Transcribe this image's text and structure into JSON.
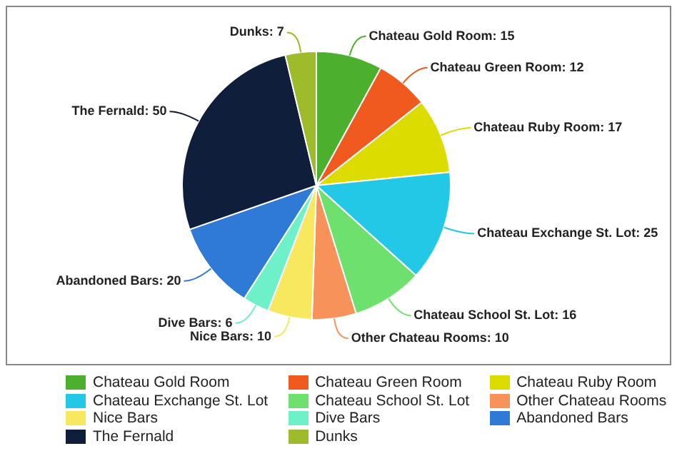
{
  "chart_data": {
    "type": "pie",
    "categories": [
      "Chateau Gold Room",
      "Chateau Green Room",
      "Chateau Ruby Room",
      "Chateau Exchange St. Lot",
      "Chateau School St. Lot",
      "Other Chateau Rooms",
      "Nice Bars",
      "Dive Bars",
      "Abandoned Bars",
      "The Fernald",
      "Dunks"
    ],
    "values": [
      15,
      12,
      17,
      25,
      16,
      10,
      10,
      6,
      20,
      50,
      7
    ],
    "value_labels": [
      "Chateau Gold Room: 15",
      "Chateau Green Room: 12",
      "Chateau Ruby Room: 17",
      "Chateau Exchange St. Lot: 25",
      "Chateau School St. Lot: 16",
      "Other Chateau Rooms: 10",
      "Nice Bars: 10",
      "Dive Bars: 6",
      "Abandoned Bars: 20",
      "The Fernald: 50",
      "Dunks: 7"
    ],
    "colors": [
      "#4caf2e",
      "#f05a1e",
      "#dcdc00",
      "#22c8e5",
      "#6ee06e",
      "#f7935a",
      "#f7e860",
      "#6ef0c8",
      "#2e7ad6",
      "#0f1e3a",
      "#9dbb2a"
    ],
    "legend": "bottom"
  }
}
